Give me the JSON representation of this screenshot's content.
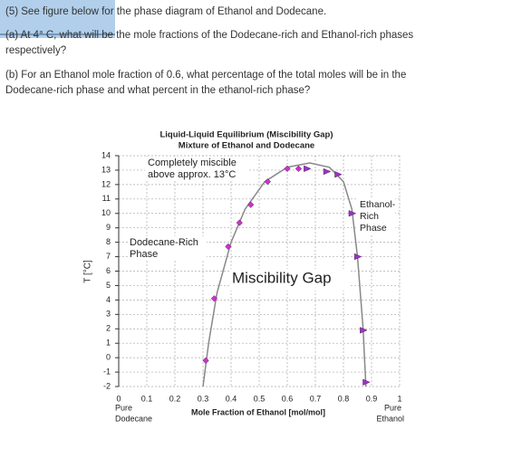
{
  "document": {
    "intro": "(5) See figure below for the phase diagram of Ethanol and Dodecane.",
    "part_a": [
      "(a) At 4° C, what will be the mole fractions of the Dodecane-rich and Ethanol-rich phases",
      "respectively?"
    ],
    "part_b": [
      "(b) For an Ethanol mole fraction of 0.6, what percentage of the total moles will be in the",
      "Dodecane-rich phase and what percent in the ethanol-rich phase?"
    ]
  },
  "chart_data": {
    "type": "scatter",
    "title": "Liquid-Liquid Equilibrium (Miscibility Gap)",
    "subtitle": "Mixture of Ethanol and Dodecane",
    "x_label": "Mole Fraction of Ethanol [mol/mol]",
    "y_label": "T [°C]",
    "xlim": [
      0,
      1
    ],
    "xticks": [
      0,
      0.1,
      0.2,
      0.3,
      0.4,
      0.5,
      0.6,
      0.7,
      0.8,
      0.9,
      1
    ],
    "ylim": [
      -2,
      14
    ],
    "yticks": [
      -2,
      -1,
      0,
      1,
      2,
      3,
      4,
      5,
      6,
      7,
      8,
      9,
      10,
      11,
      12,
      13,
      14
    ],
    "grid": true,
    "annotations": {
      "miscible": [
        "Completely miscible",
        "above approx. 13°C"
      ],
      "dodecane_phase": [
        "Dodecane-Rich",
        "Phase"
      ],
      "ethanol_phase": [
        "Ethanol-",
        "Rich",
        "Phase"
      ],
      "gap": "Miscibility Gap",
      "pure_dodecane": [
        "Pure",
        "Dodecane"
      ],
      "pure_ethanol": [
        "Pure",
        "Ethanol"
      ]
    },
    "series": [
      {
        "color": "#888888",
        "marker": "none",
        "x": [
          0.3,
          0.32,
          0.35,
          0.4,
          0.45,
          0.52,
          0.6,
          0.68,
          0.75,
          0.8,
          0.83,
          0.85,
          0.87,
          0.88
        ],
        "values": [
          -2,
          1,
          4.5,
          8,
          10.3,
          12.2,
          13.2,
          13.5,
          13.2,
          12.2,
          10.3,
          7,
          2,
          -2
        ]
      },
      {
        "color": "#cc33cc",
        "marker": "diamond",
        "x": [
          0.31,
          0.34,
          0.39,
          0.43,
          0.47,
          0.53,
          0.6,
          0.64
        ],
        "values": [
          -0.2,
          4.1,
          7.7,
          9.35,
          10.6,
          12.2,
          13.1,
          13.1
        ]
      },
      {
        "color": "#9933cc",
        "marker": "triangle",
        "x": [
          0.67,
          0.74,
          0.78,
          0.83,
          0.85,
          0.87,
          0.88
        ],
        "values": [
          13.1,
          12.9,
          12.7,
          10,
          7,
          1.9,
          -1.7
        ]
      }
    ]
  }
}
